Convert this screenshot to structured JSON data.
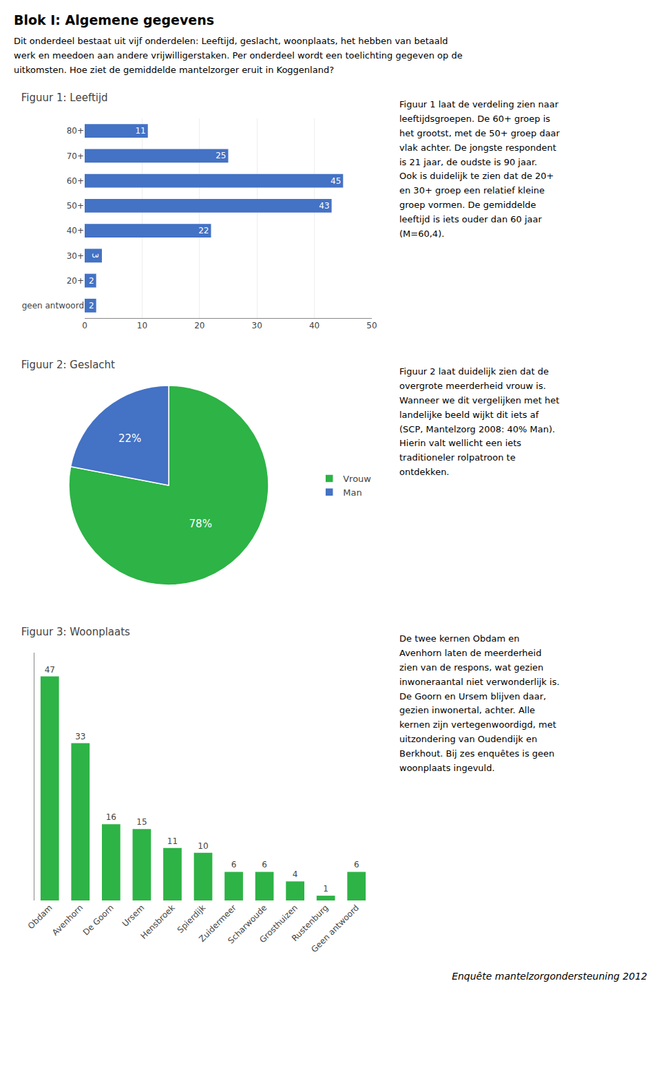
{
  "title": "Blok I: Algemene gegevens",
  "subtitle": "Dit onderdeel bestaat uit vijf onderdelen: Leeftijd, geslacht, woonplaats, het hebben van betaald\nwerk en meedoen aan andere vrijwilligerstaken. Per onderdeel wordt een toelichting gegeven op de\nuitkomsten. Hoe ziet de gemiddelde mantelzorger eruit in Koggenland?",
  "annotations": [
    "Enquête mantelzorgondersteuning 2012"
  ],
  "chart_data": [
    {
      "type": "bar",
      "orientation": "horizontal",
      "title": "Figuur 1: Leeftijd",
      "categories": [
        "geen antwoord",
        "20+",
        "30+",
        "40+",
        "50+",
        "60+",
        "70+",
        "80+"
      ],
      "values": [
        2,
        2,
        3,
        22,
        43,
        45,
        25,
        11
      ],
      "color": "#4472C4",
      "xlim": [
        0,
        50
      ],
      "xticks": [
        0,
        10,
        20,
        30,
        40,
        50
      ],
      "grid": true,
      "data_labels": true,
      "annotations": [
        "Figuur 1 laat de verdeling zien naar\nleeftijdsgroepen. De 60+ groep is\nhet grootst, met de 50+ groep daar\nvlak achter. De jongste respondent\nis 21 jaar, de oudste is 90 jaar.\nOok is duidelijk te zien dat de 20+\nen 30+ groep een relatief kleine\ngroep vormen. De gemiddelde\nleeftijd is iets ouder dan 60 jaar\n(M=60,4)."
      ]
    },
    {
      "type": "pie",
      "title": "Figuur 2: Geslacht",
      "categories": [
        "Vrouw",
        "Man"
      ],
      "values": [
        78,
        22
      ],
      "value_labels": [
        "78%",
        "22%"
      ],
      "colors": [
        "#2DB346",
        "#4472C4"
      ],
      "legend": "right",
      "annotations": [
        "Figuur 2 laat duidelijk zien dat de\novergrote meerderheid vrouw is.\nWanneer we dit vergelijken met het\nlandelijke beeld wijkt dit iets af\n(SCP, Mantelzorg 2008: 40% Man).\nHierin valt wellicht een iets\ntraditioneler rolpatroon te\nontdekken."
      ]
    },
    {
      "type": "bar",
      "title": "Figuur 3: Woonplaats",
      "categories": [
        "Obdam",
        "Avenhorn",
        "De Goorn",
        "Ursem",
        "Hensbroek",
        "Spierdijk",
        "Zuidermeer",
        "Scharwoude",
        "Grosthuizen",
        "Rustenburg",
        "Geen antwoord"
      ],
      "values": [
        47,
        33,
        16,
        15,
        11,
        10,
        6,
        6,
        4,
        1,
        6
      ],
      "color": "#2DB346",
      "ylim": [
        0,
        52
      ],
      "yticks": [],
      "tick_labels": "x",
      "grid": false,
      "data_labels": true,
      "annotations": [
        "De twee kernen Obdam en\nAvenhorn laten de meerderheid\nzien van de respons, wat gezien\ninwoneraantal niet verwonderlijk is.\nDe Goorn en Ursem blijven daar,\ngezien inwonertal, achter. Alle\nkernen zijn vertegenwoordigd, met\nuitzondering van Oudendijk en\nBerkhout. Bij zes enquêtes is geen\nwoonplaats ingevuld."
      ]
    }
  ]
}
